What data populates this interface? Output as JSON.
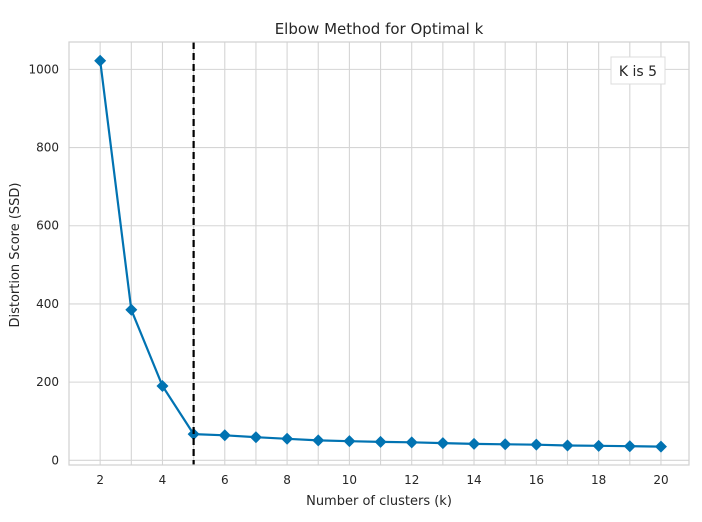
{
  "chart_data": {
    "type": "line",
    "title": "Elbow Method for Optimal k",
    "xlabel": "Number of clusters (k)",
    "ylabel": "Distortion Score (SSD)",
    "x": [
      2,
      3,
      4,
      5,
      6,
      7,
      8,
      9,
      10,
      11,
      12,
      13,
      14,
      15,
      16,
      17,
      18,
      19,
      20
    ],
    "series": [
      {
        "values": [
          1022,
          385,
          190,
          67,
          64,
          59,
          55,
          51,
          49,
          47,
          46,
          44,
          42,
          41,
          40,
          38,
          37,
          36,
          35
        ],
        "color": "#0173b2",
        "marker": "diamond"
      }
    ],
    "xlim": [
      1.0,
      20.9
    ],
    "ylim": [
      -12,
      1070
    ],
    "xticks": [
      2,
      4,
      6,
      8,
      10,
      12,
      14,
      16,
      18,
      20
    ],
    "yticks": [
      0,
      200,
      400,
      600,
      800,
      1000
    ],
    "xgrid": [
      2,
      3,
      4,
      5,
      6,
      7,
      8,
      9,
      10,
      11,
      12,
      13,
      14,
      15,
      16,
      17,
      18,
      19,
      20
    ],
    "grid": true,
    "vline": {
      "x": 5,
      "style": "dashed",
      "color": "#000000"
    },
    "legend": {
      "text": "K is 5",
      "placement": "top-right"
    }
  }
}
